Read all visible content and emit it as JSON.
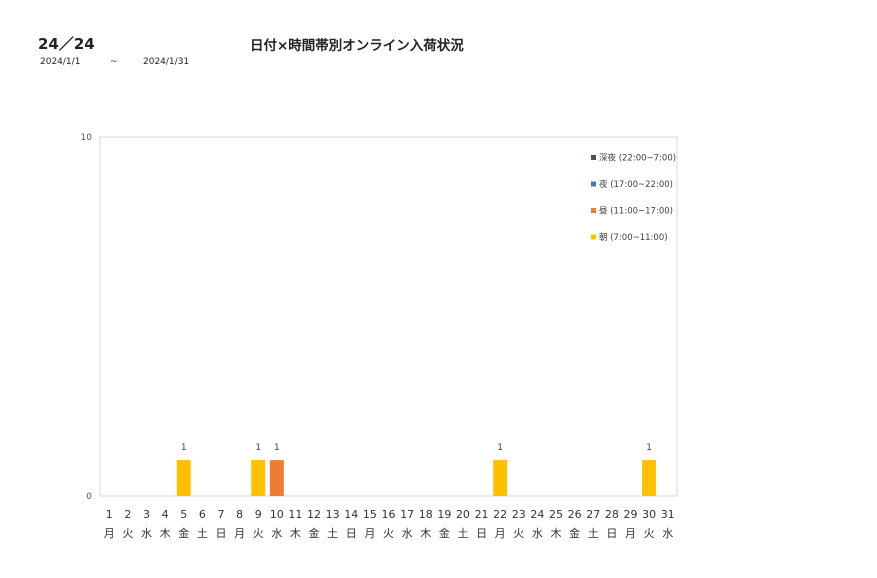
{
  "header": {
    "code": "24／24",
    "title": "日付×時間帯別オンライン入荷状況",
    "date_from": "2024/1/1",
    "tilde": "~",
    "date_to": "2024/1/31"
  },
  "chart_data": {
    "type": "bar",
    "stacked": true,
    "categories": [
      "1",
      "2",
      "3",
      "4",
      "5",
      "6",
      "7",
      "8",
      "9",
      "10",
      "11",
      "12",
      "13",
      "14",
      "15",
      "16",
      "17",
      "18",
      "19",
      "20",
      "21",
      "22",
      "23",
      "24",
      "25",
      "26",
      "27",
      "28",
      "29",
      "30",
      "31"
    ],
    "weekdays": [
      "月",
      "火",
      "水",
      "木",
      "金",
      "土",
      "日",
      "月",
      "火",
      "水",
      "木",
      "金",
      "土",
      "日",
      "月",
      "火",
      "水",
      "木",
      "金",
      "土",
      "日",
      "月",
      "火",
      "水",
      "木",
      "金",
      "土",
      "日",
      "月",
      "火",
      "水"
    ],
    "series": [
      {
        "name": "深夜 (22:00~7:00)",
        "color": "#44546a",
        "values": [
          0,
          0,
          0,
          0,
          0,
          0,
          0,
          0,
          0,
          0,
          0,
          0,
          0,
          0,
          0,
          0,
          0,
          0,
          0,
          0,
          0,
          0,
          0,
          0,
          0,
          0,
          0,
          0,
          0,
          0,
          0
        ]
      },
      {
        "name": "夜 (17:00~22:00)",
        "color": "#4472c4",
        "values": [
          0,
          0,
          0,
          0,
          0,
          0,
          0,
          0,
          0,
          0,
          0,
          0,
          0,
          0,
          0,
          0,
          0,
          0,
          0,
          0,
          0,
          0,
          0,
          0,
          0,
          0,
          0,
          0,
          0,
          0,
          0
        ]
      },
      {
        "name": "昼 (11:00~17:00)",
        "color": "#ed7d31",
        "values": [
          0,
          0,
          0,
          0,
          0,
          0,
          0,
          0,
          0,
          1,
          0,
          0,
          0,
          0,
          0,
          0,
          0,
          0,
          0,
          0,
          0,
          0,
          0,
          0,
          0,
          0,
          0,
          0,
          0,
          0,
          0
        ]
      },
      {
        "name": "朝 (7:00~11:00)",
        "color": "#ffc000",
        "values": [
          0,
          0,
          0,
          0,
          1,
          0,
          0,
          0,
          1,
          0,
          0,
          0,
          0,
          0,
          0,
          0,
          0,
          0,
          0,
          0,
          0,
          1,
          0,
          0,
          0,
          0,
          0,
          0,
          0,
          1,
          0
        ]
      }
    ],
    "ylim": [
      0,
      10
    ],
    "yticks": [
      "0",
      "10"
    ],
    "legend_position": "right",
    "grid": false
  }
}
